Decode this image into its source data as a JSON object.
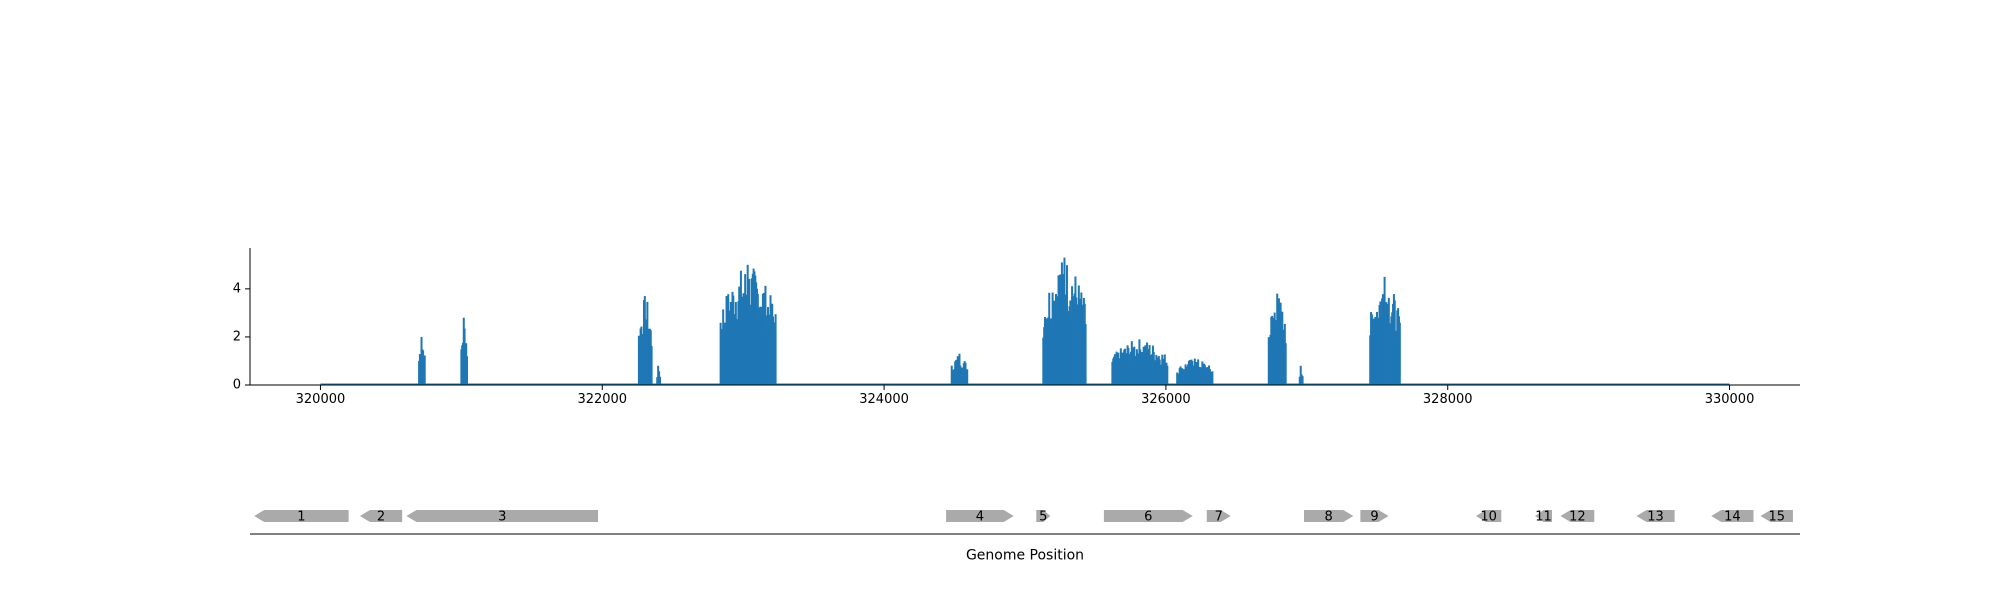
{
  "chart_data": [
    {
      "type": "bar",
      "title": "",
      "xlabel": "",
      "ylabel": "",
      "xlim": [
        319500,
        330500
      ],
      "ylim": [
        0,
        5.7
      ],
      "xticks": [
        320000,
        322000,
        324000,
        326000,
        328000,
        330000
      ],
      "yticks": [
        0,
        2,
        4
      ],
      "color": "#1f77b4",
      "baseline_range": [
        320000,
        330000
      ],
      "peaks": [
        {
          "x_start": 320700,
          "x_end": 320740,
          "max": 2.0
        },
        {
          "x_start": 321000,
          "x_end": 321040,
          "max": 2.8
        },
        {
          "x_start": 322260,
          "x_end": 322350,
          "max": 3.7
        },
        {
          "x_start": 322390,
          "x_end": 322410,
          "max": 0.8
        },
        {
          "x_start": 322840,
          "x_end": 323230,
          "max": 5.0
        },
        {
          "x_start": 324480,
          "x_end": 324590,
          "max": 1.3
        },
        {
          "x_start": 325130,
          "x_end": 325430,
          "max": 5.3
        },
        {
          "x_start": 325620,
          "x_end": 326010,
          "max": 1.9
        },
        {
          "x_start": 326080,
          "x_end": 326330,
          "max": 1.1
        },
        {
          "x_start": 326730,
          "x_end": 326850,
          "max": 3.8
        },
        {
          "x_start": 326950,
          "x_end": 326970,
          "max": 0.8
        },
        {
          "x_start": 327450,
          "x_end": 327660,
          "max": 4.5
        }
      ]
    },
    {
      "type": "gene-map",
      "xlabel": "Genome Position",
      "features": [
        {
          "label": "1",
          "start": 319530,
          "end": 320200,
          "strand": -1
        },
        {
          "label": "2",
          "start": 320280,
          "end": 320580,
          "strand": -1
        },
        {
          "label": "3",
          "start": 320610,
          "end": 321970,
          "strand": -1
        },
        {
          "label": "4",
          "start": 324440,
          "end": 324920,
          "strand": 1
        },
        {
          "label": "5",
          "start": 325080,
          "end": 325180,
          "strand": 1
        },
        {
          "label": "6",
          "start": 325560,
          "end": 326190,
          "strand": 1
        },
        {
          "label": "7",
          "start": 326290,
          "end": 326460,
          "strand": 1
        },
        {
          "label": "8",
          "start": 326980,
          "end": 327330,
          "strand": 1
        },
        {
          "label": "9",
          "start": 327380,
          "end": 327580,
          "strand": 1
        },
        {
          "label": "10",
          "start": 328200,
          "end": 328380,
          "strand": -1
        },
        {
          "label": "11",
          "start": 328620,
          "end": 328740,
          "strand": -1
        },
        {
          "label": "12",
          "start": 328800,
          "end": 329040,
          "strand": -1
        },
        {
          "label": "13",
          "start": 329340,
          "end": 329610,
          "strand": -1
        },
        {
          "label": "14",
          "start": 329870,
          "end": 330170,
          "strand": -1
        },
        {
          "label": "15",
          "start": 330220,
          "end": 330450,
          "strand": -1
        }
      ]
    }
  ]
}
